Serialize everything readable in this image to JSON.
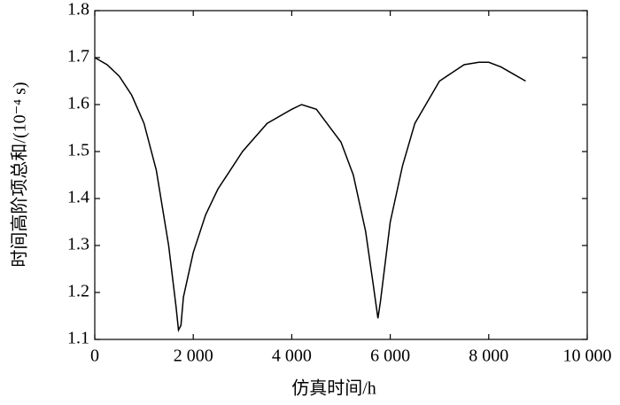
{
  "chart_data": {
    "type": "line",
    "x_label": "仿真时间/h",
    "y_label": "时间高阶项总和/(10⁻⁴ s)",
    "x": [
      0,
      250,
      500,
      750,
      1000,
      1250,
      1500,
      1650,
      1700,
      1750,
      1800,
      2000,
      2250,
      2500,
      3000,
      3500,
      4000,
      4200,
      4500,
      5000,
      5250,
      5500,
      5650,
      5750,
      5800,
      6000,
      6250,
      6500,
      7000,
      7500,
      7800,
      8000,
      8250,
      8500,
      8750
    ],
    "series": [
      {
        "color": "#000000",
        "values": [
          1.7,
          1.685,
          1.66,
          1.62,
          1.56,
          1.46,
          1.3,
          1.17,
          1.12,
          1.13,
          1.19,
          1.285,
          1.365,
          1.42,
          1.5,
          1.56,
          1.59,
          1.6,
          1.59,
          1.52,
          1.45,
          1.33,
          1.22,
          1.145,
          1.18,
          1.35,
          1.47,
          1.56,
          1.65,
          1.685,
          1.69,
          1.69,
          1.68,
          1.665,
          1.65
        ]
      }
    ],
    "xlim": [
      0,
      10000
    ],
    "ylim": [
      1.1,
      1.8
    ],
    "xticks": [
      0,
      {
        "value": 2000,
        "label": "2 000"
      },
      {
        "value": 4000,
        "label": "4 000"
      },
      {
        "value": 6000,
        "label": "6 000"
      },
      {
        "value": 8000,
        "label": "8 000"
      },
      {
        "value": 10000,
        "label": "10 000"
      }
    ],
    "yticks": [
      1.1,
      1.2,
      1.3,
      1.4,
      1.5,
      1.6,
      1.7,
      1.8
    ]
  }
}
